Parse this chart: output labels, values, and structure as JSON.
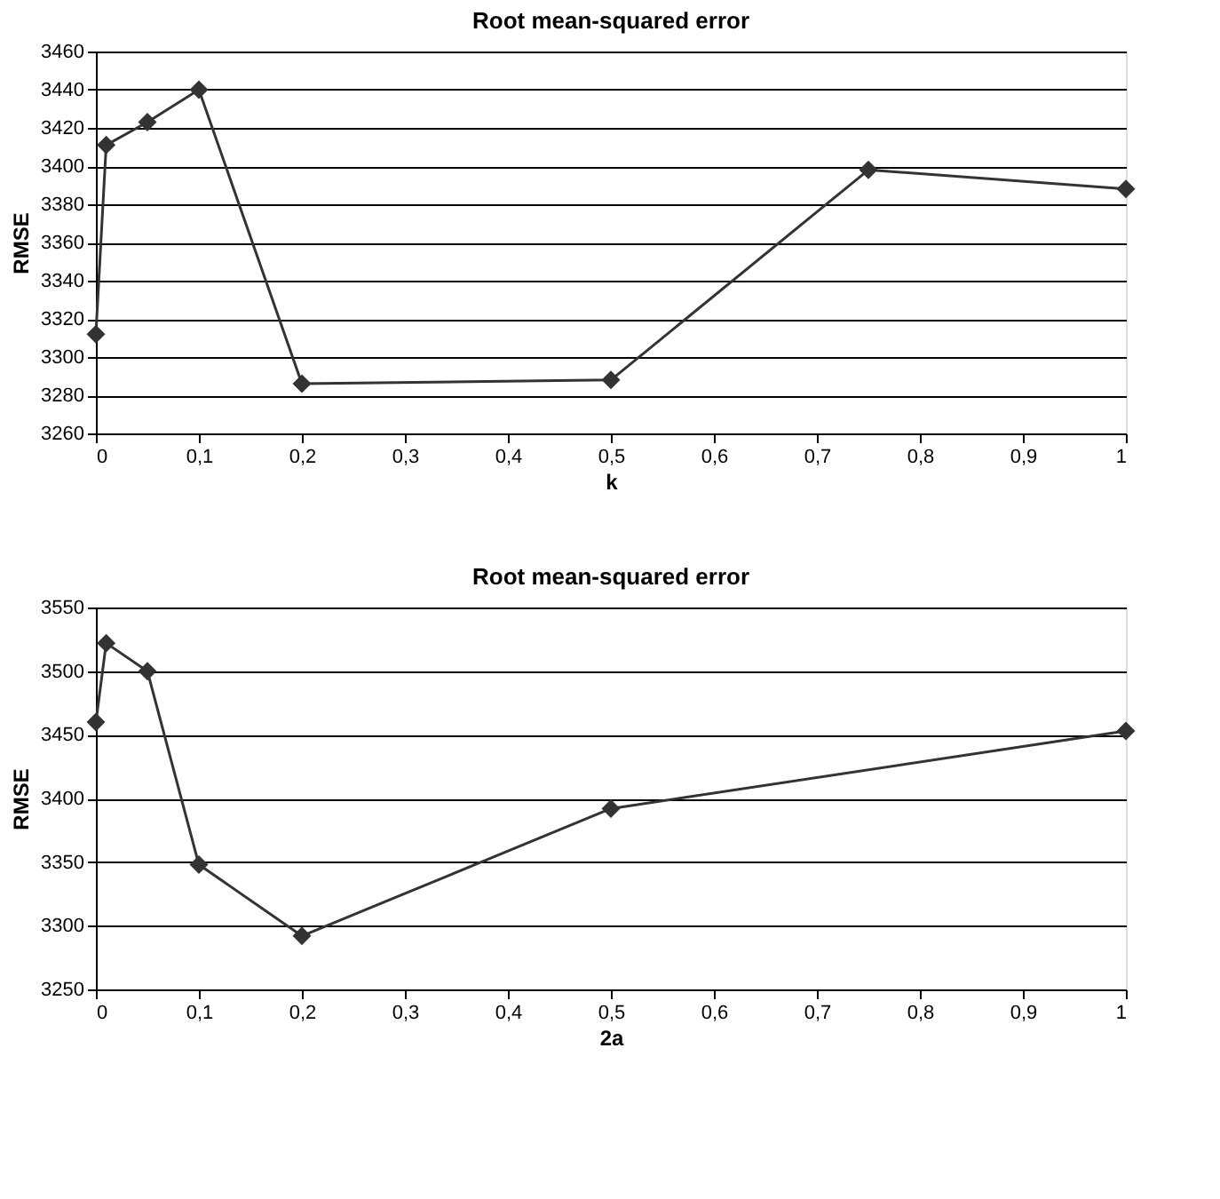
{
  "chart_data": [
    {
      "type": "line",
      "title": "Root mean-squared error",
      "xlabel": "k",
      "ylabel": "RMSE",
      "marker": "diamond",
      "line_style": "solid",
      "grid": "y",
      "x": [
        0,
        0.01,
        0.05,
        0.1,
        0.2,
        0.5,
        0.75,
        1
      ],
      "legend": false,
      "series": [
        {
          "color": "#333333",
          "values": [
            3312,
            3411,
            3423,
            3440,
            3286,
            3288,
            3398,
            3388
          ]
        }
      ],
      "xlim": [
        0,
        1
      ],
      "ylim": [
        3260,
        3460
      ],
      "xticks": [
        {
          "value": 0,
          "label": "0"
        },
        {
          "value": 0.1,
          "label": "0,1"
        },
        {
          "value": 0.2,
          "label": "0,2"
        },
        {
          "value": 0.3,
          "label": "0,3"
        },
        {
          "value": 0.4,
          "label": "0,4"
        },
        {
          "value": 0.5,
          "label": "0,5"
        },
        {
          "value": 0.6,
          "label": "0,6"
        },
        {
          "value": 0.7,
          "label": "0,7"
        },
        {
          "value": 0.8,
          "label": "0,8"
        },
        {
          "value": 0.9,
          "label": "0,9"
        },
        {
          "value": 1,
          "label": "1"
        }
      ],
      "yticks": [
        3260,
        3280,
        3300,
        3320,
        3340,
        3360,
        3380,
        3400,
        3420,
        3440,
        3460
      ]
    },
    {
      "type": "line",
      "title": "Root mean-squared error",
      "xlabel": "2a",
      "ylabel": "RMSE",
      "marker": "diamond",
      "line_style": "solid",
      "grid": "y",
      "x": [
        0,
        0.01,
        0.05,
        0.1,
        0.2,
        0.5,
        1
      ],
      "legend": false,
      "series": [
        {
          "color": "#333333",
          "values": [
            3460,
            3522,
            3500,
            3348,
            3292,
            3392,
            3453
          ]
        }
      ],
      "xlim": [
        0,
        1
      ],
      "ylim": [
        3250,
        3550
      ],
      "xticks": [
        {
          "value": 0,
          "label": "0"
        },
        {
          "value": 0.1,
          "label": "0,1"
        },
        {
          "value": 0.2,
          "label": "0,2"
        },
        {
          "value": 0.3,
          "label": "0,3"
        },
        {
          "value": 0.4,
          "label": "0,4"
        },
        {
          "value": 0.5,
          "label": "0,5"
        },
        {
          "value": 0.6,
          "label": "0,6"
        },
        {
          "value": 0.7,
          "label": "0,7"
        },
        {
          "value": 0.8,
          "label": "0,8"
        },
        {
          "value": 0.9,
          "label": "0,9"
        },
        {
          "value": 1,
          "label": "1"
        }
      ],
      "yticks": [
        3250,
        3300,
        3350,
        3400,
        3450,
        3500,
        3550
      ]
    }
  ]
}
